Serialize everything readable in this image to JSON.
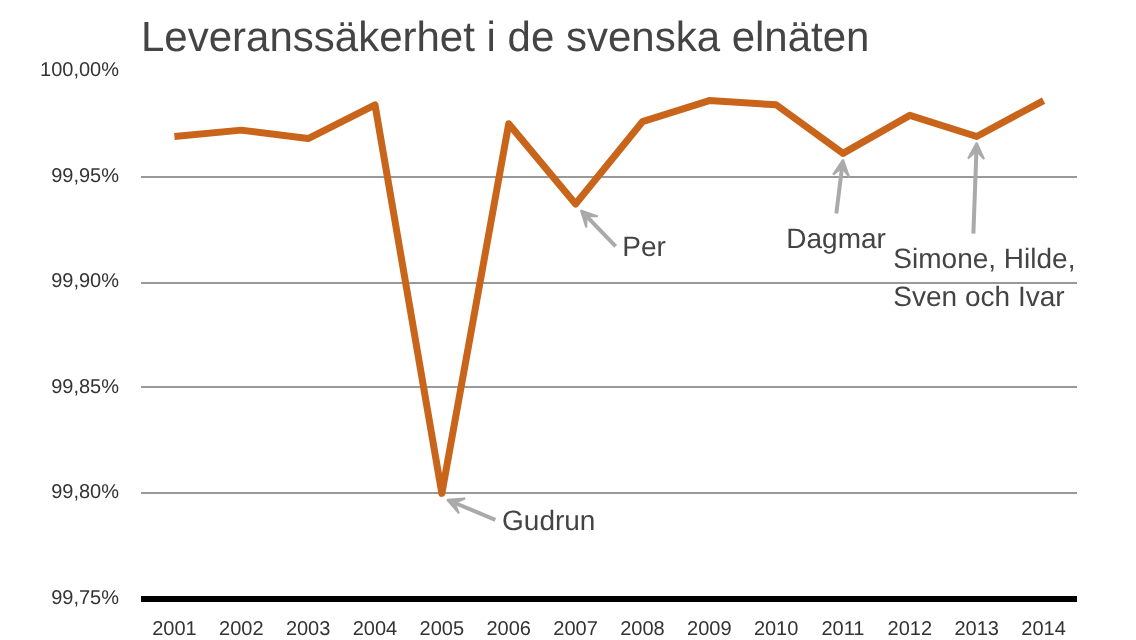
{
  "chart_data": {
    "type": "line",
    "title": "Leveranssäkerhet i de svenska elnäten",
    "categories": [
      "2001",
      "2002",
      "2003",
      "2004",
      "2005",
      "2006",
      "2007",
      "2008",
      "2009",
      "2010",
      "2011",
      "2012",
      "2013",
      "2014"
    ],
    "series": [
      {
        "color": "#c8651b",
        "values": [
          99.969,
          99.972,
          99.968,
          99.984,
          99.8,
          99.975,
          99.937,
          99.976,
          99.986,
          99.984,
          99.961,
          99.979,
          99.969,
          99.986
        ]
      }
    ],
    "ylim": [
      99.75,
      100.0
    ],
    "yticks": [
      {
        "value": 99.75,
        "label": "99,75%"
      },
      {
        "value": 99.8,
        "label": "99,80%"
      },
      {
        "value": 99.85,
        "label": "99,85%"
      },
      {
        "value": 99.9,
        "label": "99,90%"
      },
      {
        "value": 99.95,
        "label": "99,95%"
      },
      {
        "value": 100.0,
        "label": "100,00%"
      }
    ],
    "grid": "y",
    "marker": "none",
    "line_style": "solid",
    "annotations": [
      {
        "text": "Gudrun",
        "x": "2005",
        "y": 99.8
      },
      {
        "text": "Per",
        "x": "2007",
        "y": 99.937
      },
      {
        "text": "Dagmar",
        "x": "2011",
        "y": 99.961
      },
      {
        "text": "Simone, Hilde,\nSven och Ivar",
        "x": "2013",
        "y": 99.969
      }
    ]
  }
}
